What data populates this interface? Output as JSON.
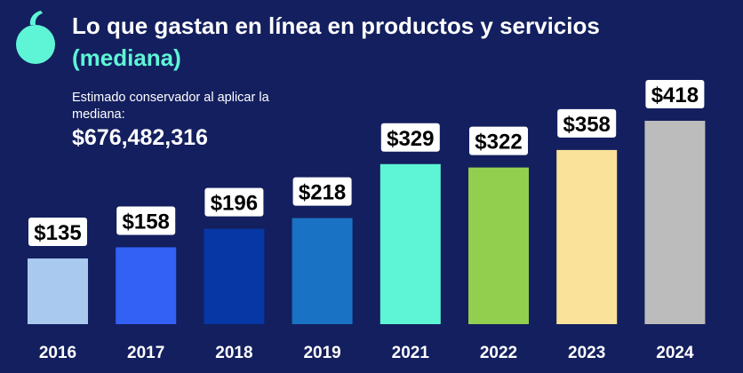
{
  "header": {
    "title": "Lo que gastan en línea en productos y servicios",
    "subtitle": "(mediana)"
  },
  "note": {
    "label": "Estimado conservador al aplicar la mediana:",
    "value": "$676,482,316"
  },
  "colors": {
    "background": "#131f5e",
    "accent": "#5ef5d6",
    "text": "#ffffff"
  },
  "chart_data": {
    "type": "bar",
    "categories": [
      "2016",
      "2017",
      "2018",
      "2019",
      "2021",
      "2022",
      "2023",
      "2024"
    ],
    "values": [
      135,
      158,
      196,
      218,
      329,
      322,
      358,
      418
    ],
    "value_labels": [
      "$135",
      "$158",
      "$196",
      "$218",
      "$329",
      "$322",
      "$358",
      "$418"
    ],
    "colors": [
      "#aac9ef",
      "#3360f5",
      "#0637a4",
      "#1a72c4",
      "#5ef5d6",
      "#92cf4e",
      "#fbe29b",
      "#bcbcbc"
    ],
    "title": "Lo que gastan en línea en productos y servicios",
    "subtitle": "(mediana)",
    "xlabel": "",
    "ylabel": "",
    "ylim": [
      0,
      430
    ],
    "grid": false,
    "legend": "none"
  }
}
